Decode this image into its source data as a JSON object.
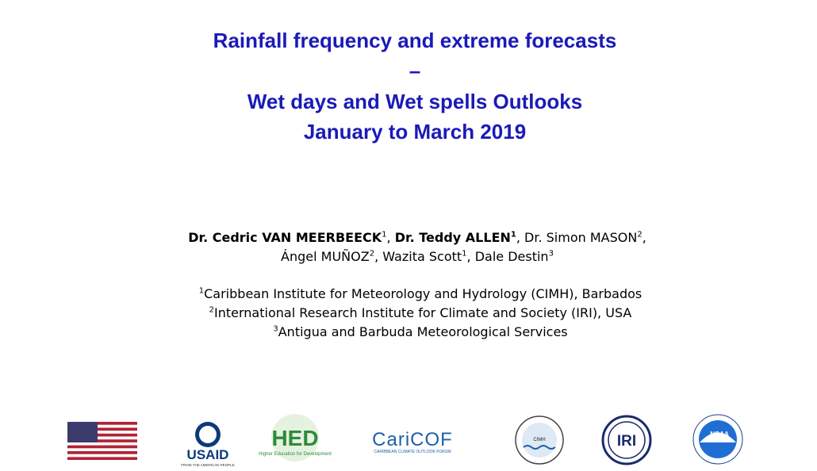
{
  "title": {
    "lines": [
      "Rainfall frequency and extreme forecasts",
      "–",
      "Wet days and Wet spells Outlooks",
      "January to March 2019"
    ]
  },
  "authors": {
    "lines": [
      [
        {
          "text": "Dr. Cedric VAN MEERBEECK",
          "sup": "1"
        },
        {
          "text": ", "
        },
        {
          "text": "Dr. Teddy ALLEN",
          "sup": "1"
        },
        {
          "text": ", Dr. Simon MASON",
          "sup": "2"
        },
        {
          "text": ","
        }
      ],
      [
        {
          "text": "Ángel MUÑOZ",
          "sup": "2"
        },
        {
          "text": ", Wazita Scott",
          "sup": "1"
        },
        {
          "text": ", Dale Destin",
          "sup": "3"
        }
      ]
    ]
  },
  "affiliations": [
    {
      "sup": "1",
      "text": "Caribbean Institute for Meteorology and Hydrology (CIMH), Barbados"
    },
    {
      "sup": "2",
      "text": "International Research Institute for Climate and Society (IRI), USA"
    },
    {
      "sup": "3",
      "text": "Antigua and Barbuda Meteorological Services"
    }
  ],
  "logos": {
    "usaid": {
      "name": "USAID",
      "tagline": "FROM THE AMERICAN PEOPLE"
    },
    "hed": {
      "name": "HED",
      "tagline": "Higher Education for Development"
    },
    "caricof": {
      "name": "CariCOF",
      "tagline": "CARIBBEAN CLIMATE OUTLOOK FORUM"
    },
    "cimh": {
      "name": "CIMH"
    },
    "iri": {
      "name": "IRI"
    },
    "noaa": {
      "name": "NOAA"
    }
  }
}
